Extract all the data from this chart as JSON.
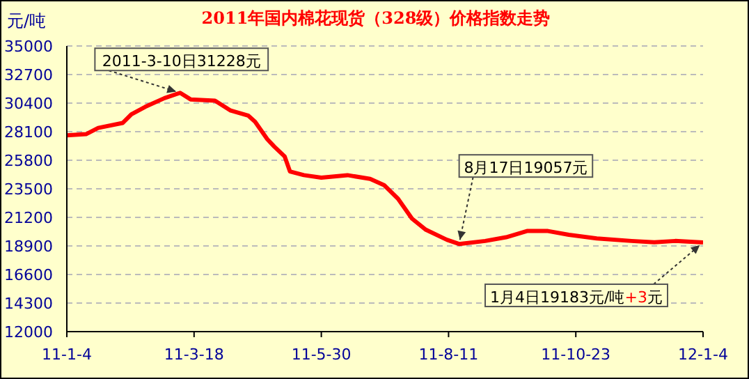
{
  "chart_data": {
    "type": "line",
    "title": "2011年国内棉花现货（328级）价格指数走势",
    "ylabel": "元/吨",
    "x": [
      "2011-01-04",
      "2011-01-15",
      "2011-01-22",
      "2011-02-05",
      "2011-02-10",
      "2011-02-18",
      "2011-03-01",
      "2011-03-10",
      "2011-03-16",
      "2011-03-30",
      "2011-04-08",
      "2011-04-18",
      "2011-04-22",
      "2011-04-29",
      "2011-05-03",
      "2011-05-09",
      "2011-05-12",
      "2011-05-20",
      "2011-05-30",
      "2011-06-14",
      "2011-06-27",
      "2011-07-05",
      "2011-07-13",
      "2011-07-21",
      "2011-07-29",
      "2011-08-10",
      "2011-08-17",
      "2011-09-01",
      "2011-09-13",
      "2011-09-25",
      "2011-10-07",
      "2011-10-19",
      "2011-11-04",
      "2011-11-24",
      "2011-12-07",
      "2011-12-19",
      "2012-01-04"
    ],
    "series": [
      {
        "color": "#ff0000",
        "values": [
          27800,
          27900,
          28400,
          28800,
          29500,
          30100,
          30800,
          31228,
          30700,
          30600,
          29800,
          29400,
          28900,
          27500,
          26900,
          26100,
          24900,
          24600,
          24400,
          24600,
          24300,
          23800,
          22700,
          21100,
          20200,
          19400,
          19057,
          19300,
          19600,
          20100,
          20100,
          19800,
          19500,
          19300,
          19200,
          19300,
          19183
        ]
      }
    ],
    "xlim": [
      "2011-01-04",
      "2012-01-04"
    ],
    "xticks": [
      {
        "value": "2011-01-04",
        "label": "11-1-4"
      },
      {
        "value": "2011-03-18",
        "label": "11-3-18"
      },
      {
        "value": "2011-05-30",
        "label": "11-5-30"
      },
      {
        "value": "2011-08-11",
        "label": "11-8-11"
      },
      {
        "value": "2011-10-23",
        "label": "11-10-23"
      },
      {
        "value": "2012-01-04",
        "label": "12-1-4"
      }
    ],
    "ylim": [
      12000,
      35000
    ],
    "yticks": [
      12000,
      14300,
      16600,
      18900,
      21200,
      23500,
      25800,
      28100,
      30400,
      32700,
      35000
    ],
    "grid": "y",
    "legend": false,
    "marker": "none",
    "line_style": "solid",
    "annotations": [
      {
        "text": "2011-3-10日31228元",
        "x": "2011-03-10",
        "y": 31228
      },
      {
        "text": "8月17日19057元",
        "x": "2011-08-17",
        "y": 19057
      },
      {
        "text": "1月4日19183元/吨+3元",
        "x": "2012-01-04",
        "y": 19183
      }
    ]
  }
}
